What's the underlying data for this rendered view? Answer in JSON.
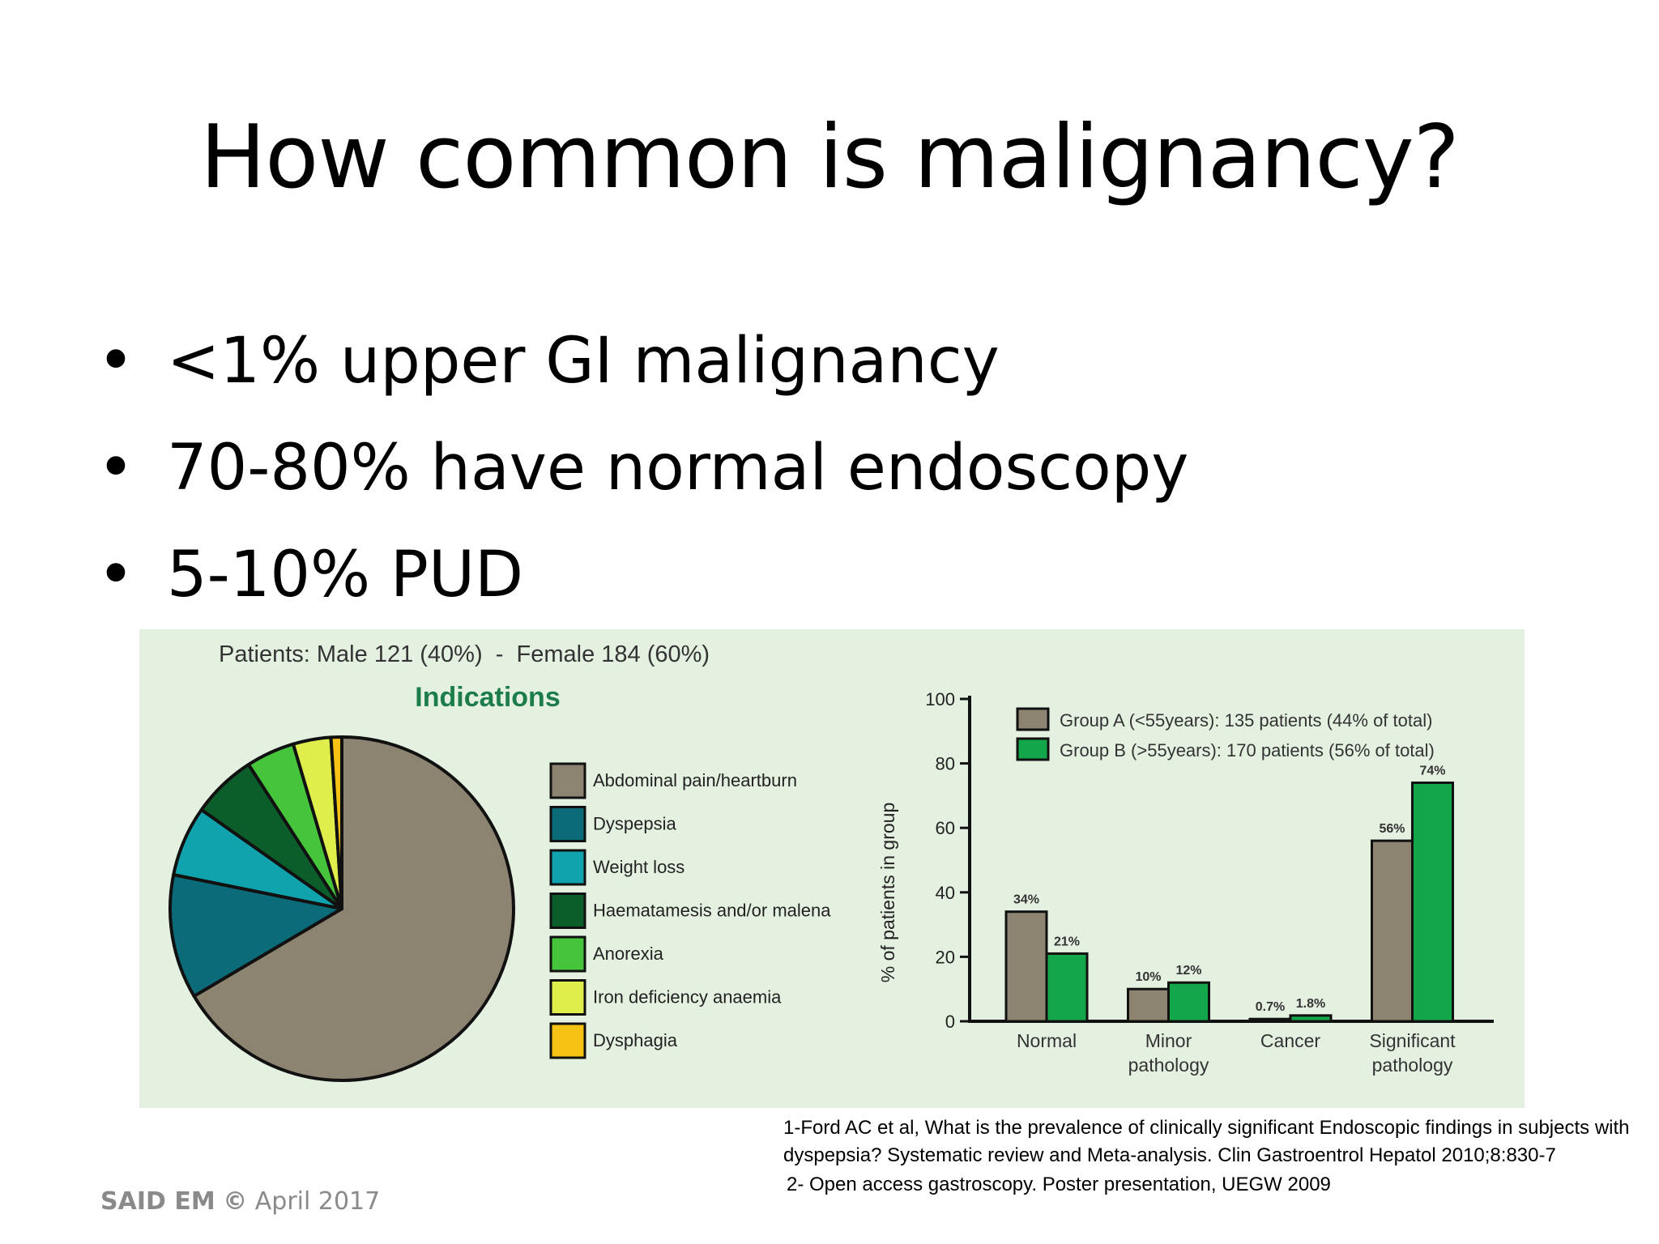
{
  "slide": {
    "title": "How common is malignancy?",
    "bullets": [
      "<1% upper GI malignancy",
      "70-80% have normal endoscopy",
      "5-10% PUD"
    ],
    "bullet_symbol": "•"
  },
  "figure": {
    "patients_line": "Patients: Male 121 (40%)  -  Female 184 (60%)",
    "pie_title": "Indications"
  },
  "chart_data": [
    {
      "type": "pie",
      "title": "Indications",
      "slices": [
        {
          "label": "Abdominal pain/heartburn",
          "value": 65.5,
          "color": "#8c8370"
        },
        {
          "label": "Dyspepsia",
          "value": 11.5,
          "color": "#0b6b79"
        },
        {
          "label": "Weight loss",
          "value": 6.5,
          "color": "#10a3ad"
        },
        {
          "label": "Haematamesis and/or malena",
          "value": 6.0,
          "color": "#0b5d2a"
        },
        {
          "label": "Anorexia",
          "value": 4.5,
          "color": "#45c43c"
        },
        {
          "label": "Iron deficiency anaemia",
          "value": 3.5,
          "color": "#dfee4a"
        },
        {
          "label": "Dysphagia",
          "value": 1.0,
          "color": "#f6c315"
        }
      ],
      "legend": "right"
    },
    {
      "type": "bar",
      "categories": [
        "Normal",
        "Minor\npathology",
        "Cancer",
        "Significant\npathology"
      ],
      "series": [
        {
          "name": "Group A (<55years): 135 patients (44% of total)",
          "values": [
            34,
            10,
            0.7,
            56
          ],
          "labels": [
            "34%",
            "10%",
            "0.7%",
            "56%"
          ],
          "color": "#8c8370"
        },
        {
          "name": "Group B (>55years): 170 patients (56% of total)",
          "values": [
            21,
            12,
            1.8,
            74
          ],
          "labels": [
            "21%",
            "12%",
            "1.8%",
            "74%"
          ],
          "color": "#13a64a"
        }
      ],
      "ylabel": "% of patients in group",
      "ylim": [
        0,
        100
      ],
      "yticks": [
        0,
        20,
        40,
        60,
        80,
        100
      ],
      "legend": "top"
    }
  ],
  "references": {
    "ref1": "1-Ford AC et al, What is the prevalence of clinically significant Endoscopic findings in subjects with dyspepsia? Systematic review and  Meta-analysis. Clin Gastroentrol Hepatol 2010;8:830-7",
    "ref2": "2- Open access gastroscopy. Poster presentation, UEGW 2009"
  },
  "footer": {
    "brand": "SAID EM",
    "copyright": "©",
    "date": "April 2017"
  }
}
